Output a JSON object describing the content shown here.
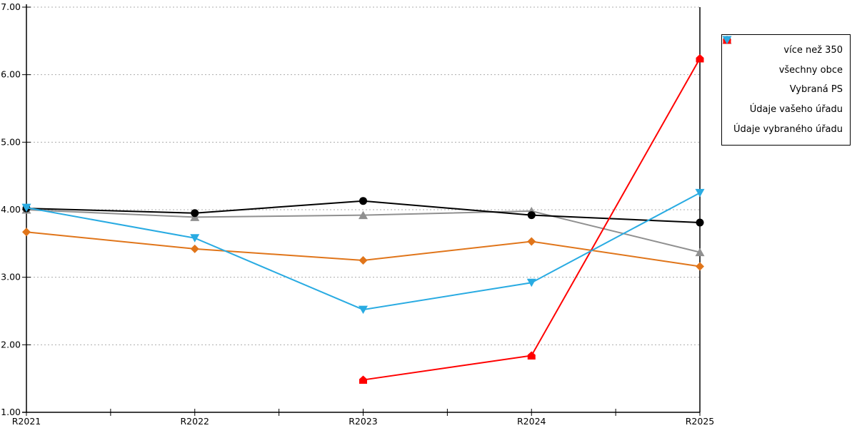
{
  "chart_data": {
    "type": "line",
    "title": "",
    "xlabel": "",
    "ylabel": "",
    "categories": [
      "R2021",
      "R2022",
      "R2023",
      "R2024",
      "R2025"
    ],
    "series": [
      {
        "name": "více než 350",
        "color": "#E0751A",
        "marker": "diamond",
        "values": [
          3.67,
          3.42,
          3.25,
          3.53,
          3.16
        ]
      },
      {
        "name": "všechny obce",
        "color": "#000000",
        "marker": "circle",
        "values": [
          4.02,
          3.95,
          4.13,
          3.92,
          3.81
        ]
      },
      {
        "name": "Vybraná PS",
        "color": "#909090",
        "marker": "triangle-up",
        "values": [
          4.0,
          3.89,
          3.92,
          3.98,
          3.37
        ]
      },
      {
        "name": "Údaje vašeho úřadu",
        "color": "#FF0000",
        "marker": "pentagon",
        "values": [
          null,
          null,
          1.48,
          1.84,
          6.24
        ]
      },
      {
        "name": "Údaje vybraného úřadu",
        "color": "#29ABE2",
        "marker": "triangle-down",
        "values": [
          4.03,
          3.58,
          2.52,
          2.92,
          4.25
        ]
      }
    ],
    "ylim": [
      1,
      7
    ],
    "ytick_step": 1,
    "ytick_labels": [
      "1.00",
      "2.00",
      "3.00",
      "4.00",
      "5.00",
      "6.00",
      "7.00"
    ],
    "grid": "horizontal-dotted",
    "gridline_color": "#ADADAD",
    "axis_color": "#000000",
    "minor_ticks_between_categories": true,
    "legend_position": "top-right"
  }
}
